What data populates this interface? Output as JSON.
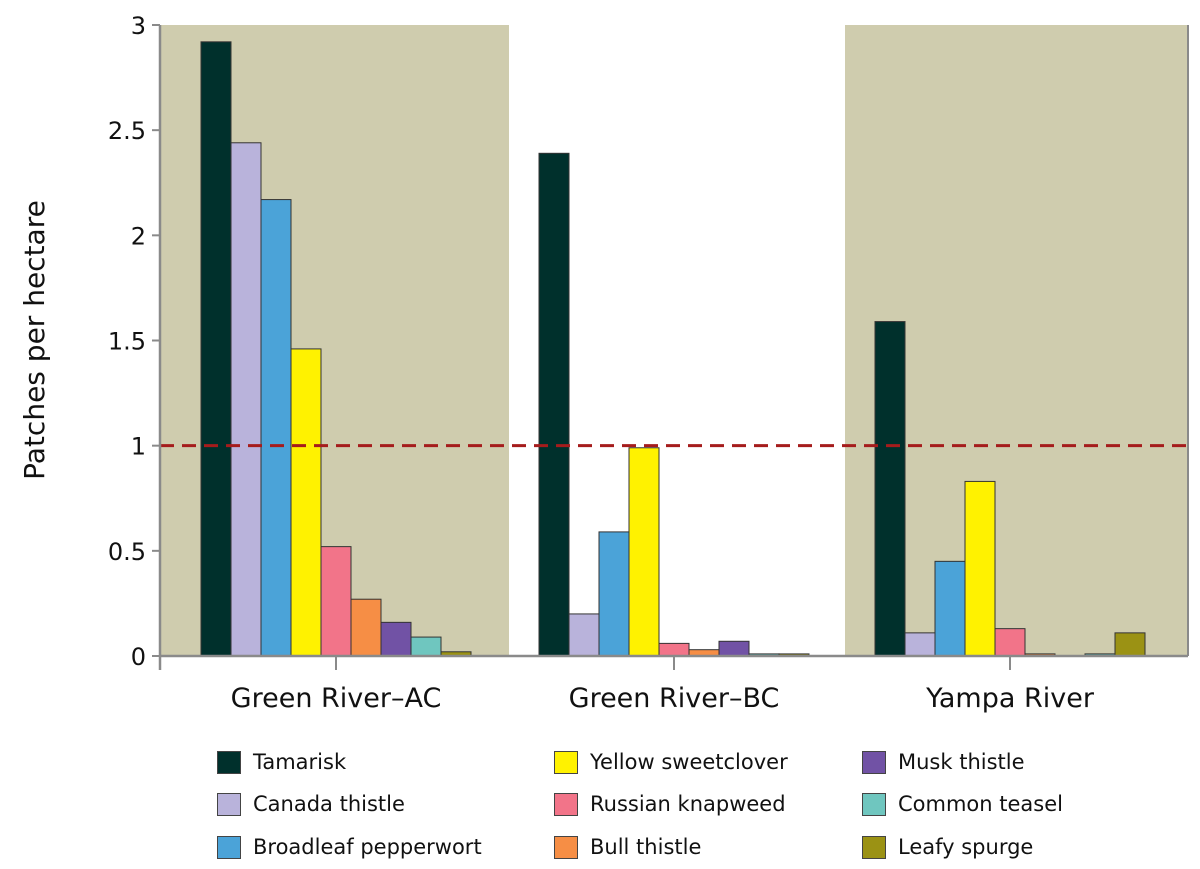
{
  "chart_data": {
    "type": "bar",
    "ylabel": "Patches per hectare",
    "xlabel": "",
    "ylim": [
      0,
      3
    ],
    "yticks": [
      "0",
      "0.5",
      "1",
      "1.5",
      "2",
      "2.5",
      "3"
    ],
    "categories": [
      "Green River–AC",
      "Green River–BC",
      "Yampa River"
    ],
    "panel_colors": [
      "#cfccae",
      "#ffffff",
      "#cfccae"
    ],
    "reference_line": {
      "value": 1,
      "style": "dashed",
      "color": "#a51c1c"
    },
    "legend_placement": "bottom",
    "series": [
      {
        "name": "Tamarisk",
        "color": "#00302c",
        "values": [
          2.92,
          2.39,
          1.59
        ]
      },
      {
        "name": "Canada thistle",
        "color": "#b9b3db",
        "values": [
          2.44,
          0.2,
          0.11
        ]
      },
      {
        "name": "Broadleaf pepperwort",
        "color": "#4ba3d8",
        "values": [
          2.17,
          0.59,
          0.45
        ]
      },
      {
        "name": "Yellow sweetclover",
        "color": "#fff200",
        "values": [
          1.46,
          0.99,
          0.83
        ]
      },
      {
        "name": "Russian knapweed",
        "color": "#f27489",
        "values": [
          0.52,
          0.06,
          0.13
        ]
      },
      {
        "name": "Bull thistle",
        "color": "#f68e45",
        "values": [
          0.27,
          0.03,
          0.01
        ]
      },
      {
        "name": "Musk thistle",
        "color": "#7152a5",
        "values": [
          0.16,
          0.07,
          0.0
        ]
      },
      {
        "name": "Common teasel",
        "color": "#6fc6bf",
        "values": [
          0.09,
          0.01,
          0.01
        ]
      },
      {
        "name": "Leafy spurge",
        "color": "#9b9214",
        "values": [
          0.02,
          0.01,
          0.11
        ]
      }
    ]
  }
}
